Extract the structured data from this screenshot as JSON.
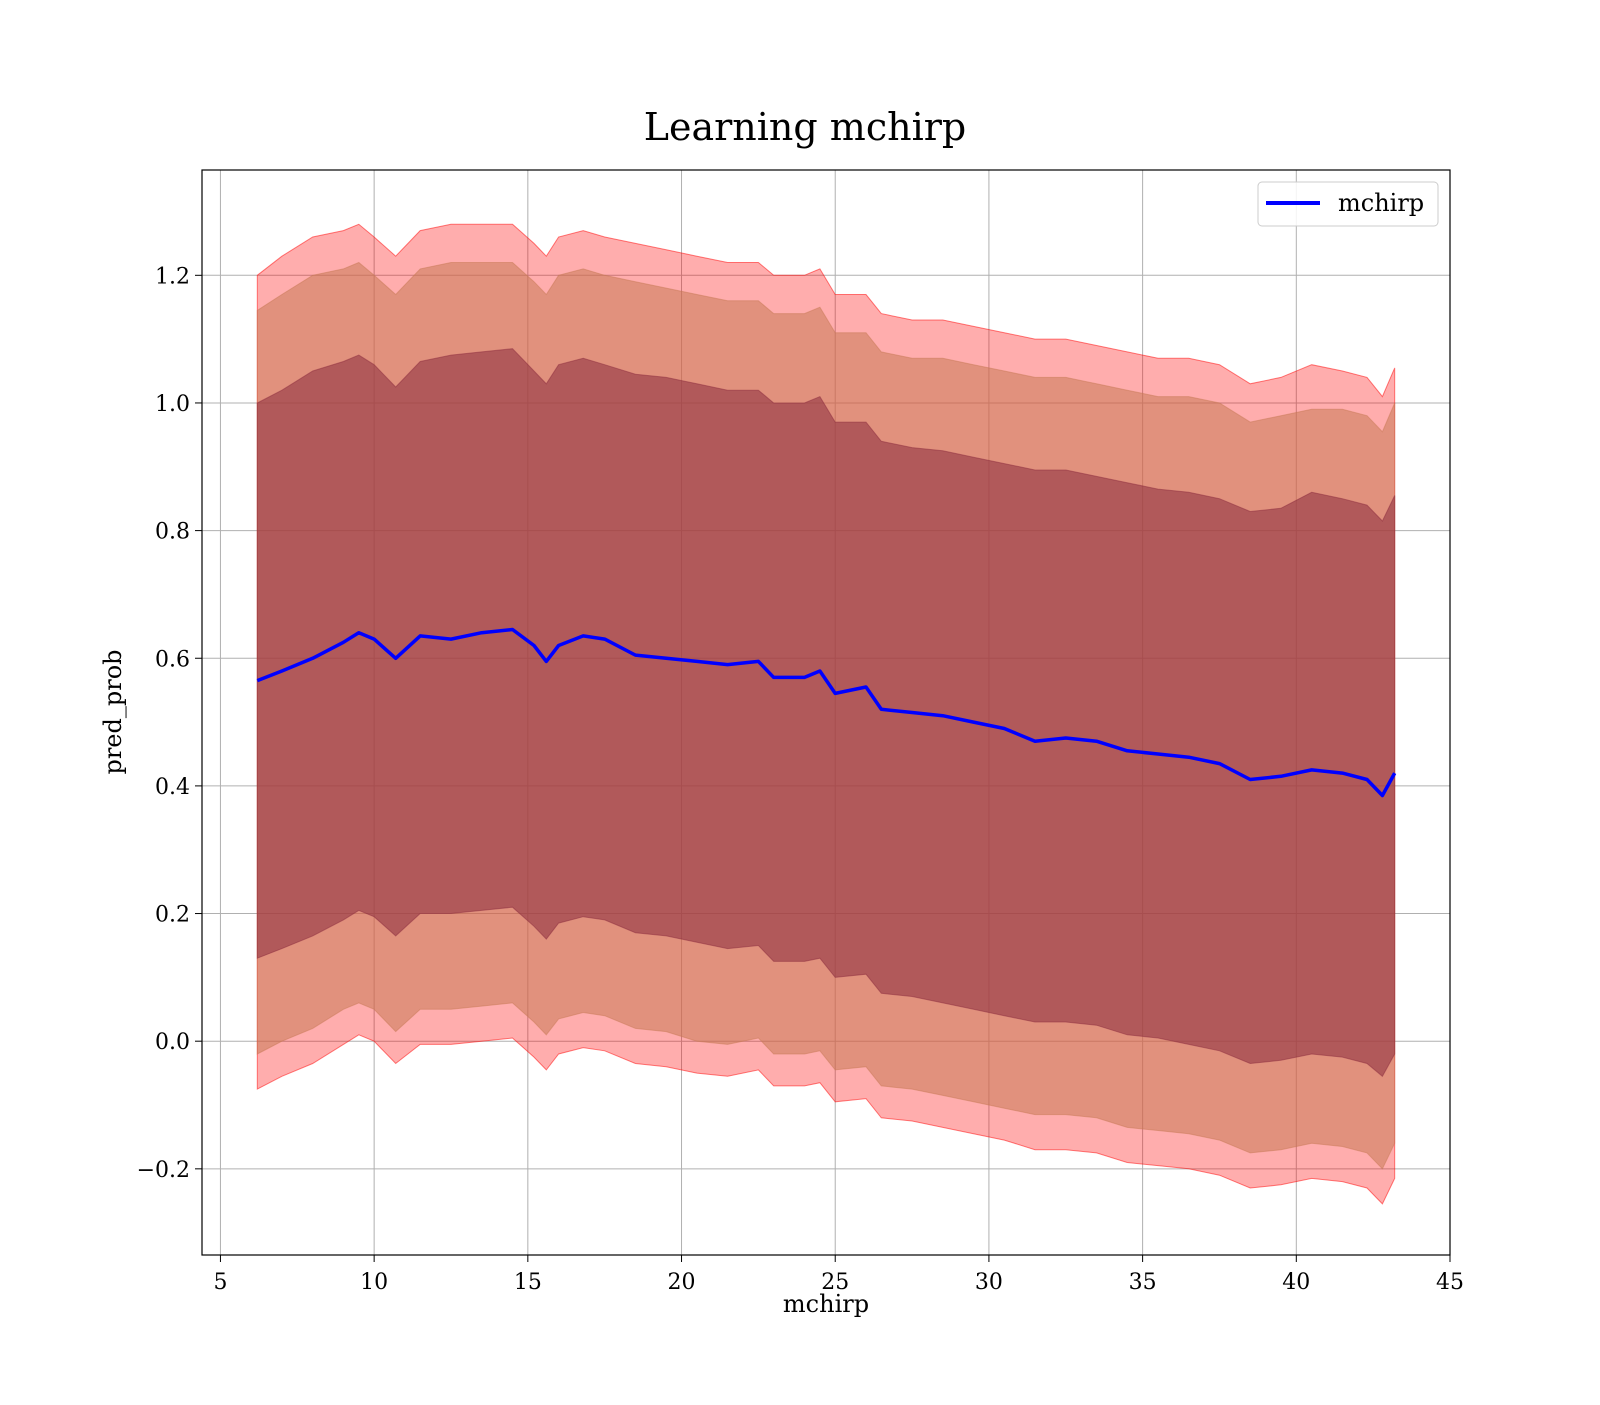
{
  "chart_data": {
    "type": "line",
    "title": "Learning mchirp",
    "xlabel": "mchirp",
    "ylabel": "pred_prob",
    "xlim": [
      4.4,
      45
    ],
    "ylim": [
      -0.335,
      1.365
    ],
    "xticks": [
      5,
      10,
      15,
      20,
      25,
      30,
      35,
      40,
      45
    ],
    "xtick_labels": [
      "5",
      "10",
      "15",
      "20",
      "25",
      "30",
      "35",
      "40",
      "45"
    ],
    "yticks": [
      -0.2,
      0.0,
      0.2,
      0.4,
      0.6,
      0.8,
      1.0,
      1.2
    ],
    "ytick_labels": [
      "−0.2",
      "0.0",
      "0.2",
      "0.4",
      "0.6",
      "0.8",
      "1.0",
      "1.2"
    ],
    "grid": true,
    "legend": {
      "placement": "top-right",
      "entries": [
        "mchirp"
      ]
    },
    "colors": {
      "line": "#0000ff",
      "band_outer": "#ff0000",
      "band_middle": "#c87a55",
      "band_inner": "#8b2c3e"
    },
    "x": [
      6.2,
      7.0,
      8.0,
      9.0,
      9.5,
      10.0,
      10.7,
      11.5,
      12.5,
      13.5,
      14.5,
      15.2,
      15.6,
      16.0,
      16.8,
      17.5,
      18.5,
      19.5,
      20.5,
      21.5,
      22.5,
      23.0,
      24.0,
      24.5,
      25.0,
      26.0,
      26.5,
      27.5,
      28.5,
      29.5,
      30.5,
      31.5,
      32.5,
      33.5,
      34.5,
      35.5,
      36.5,
      37.5,
      38.5,
      39.5,
      40.5,
      41.5,
      42.3,
      42.8,
      43.2
    ],
    "series": [
      {
        "name": "mchirp",
        "values": [
          0.565,
          0.58,
          0.6,
          0.625,
          0.64,
          0.63,
          0.6,
          0.635,
          0.63,
          0.64,
          0.645,
          0.62,
          0.595,
          0.62,
          0.635,
          0.63,
          0.605,
          0.6,
          0.595,
          0.59,
          0.595,
          0.57,
          0.57,
          0.58,
          0.545,
          0.555,
          0.52,
          0.515,
          0.51,
          0.5,
          0.49,
          0.47,
          0.475,
          0.47,
          0.455,
          0.45,
          0.445,
          0.435,
          0.41,
          0.415,
          0.425,
          0.42,
          0.41,
          0.385,
          0.42
        ]
      }
    ],
    "bands": [
      {
        "level": "outer",
        "upper": [
          1.2,
          1.23,
          1.26,
          1.27,
          1.28,
          1.26,
          1.23,
          1.27,
          1.28,
          1.28,
          1.28,
          1.25,
          1.23,
          1.26,
          1.27,
          1.26,
          1.25,
          1.24,
          1.23,
          1.22,
          1.22,
          1.2,
          1.2,
          1.21,
          1.17,
          1.17,
          1.14,
          1.13,
          1.13,
          1.12,
          1.11,
          1.1,
          1.1,
          1.09,
          1.08,
          1.07,
          1.07,
          1.06,
          1.03,
          1.04,
          1.06,
          1.05,
          1.04,
          1.01,
          1.055
        ],
        "lower": [
          -0.075,
          -0.055,
          -0.035,
          -0.005,
          0.01,
          0.0,
          -0.035,
          -0.005,
          -0.005,
          0.0,
          0.005,
          -0.025,
          -0.045,
          -0.02,
          -0.01,
          -0.015,
          -0.035,
          -0.04,
          -0.05,
          -0.055,
          -0.045,
          -0.07,
          -0.07,
          -0.065,
          -0.095,
          -0.09,
          -0.12,
          -0.125,
          -0.135,
          -0.145,
          -0.155,
          -0.17,
          -0.17,
          -0.175,
          -0.19,
          -0.195,
          -0.2,
          -0.21,
          -0.23,
          -0.225,
          -0.215,
          -0.22,
          -0.23,
          -0.255,
          -0.215
        ]
      },
      {
        "level": "middle",
        "upper": [
          1.145,
          1.17,
          1.2,
          1.21,
          1.22,
          1.2,
          1.17,
          1.21,
          1.22,
          1.22,
          1.22,
          1.19,
          1.17,
          1.2,
          1.21,
          1.2,
          1.19,
          1.18,
          1.17,
          1.16,
          1.16,
          1.14,
          1.14,
          1.15,
          1.11,
          1.11,
          1.08,
          1.07,
          1.07,
          1.06,
          1.05,
          1.04,
          1.04,
          1.03,
          1.02,
          1.01,
          1.01,
          1.0,
          0.97,
          0.98,
          0.99,
          0.99,
          0.98,
          0.955,
          1.0
        ],
        "lower": [
          -0.02,
          0.0,
          0.02,
          0.05,
          0.06,
          0.05,
          0.015,
          0.05,
          0.05,
          0.055,
          0.06,
          0.03,
          0.01,
          0.035,
          0.045,
          0.04,
          0.02,
          0.015,
          0.0,
          -0.005,
          0.005,
          -0.02,
          -0.02,
          -0.015,
          -0.045,
          -0.04,
          -0.07,
          -0.075,
          -0.085,
          -0.095,
          -0.105,
          -0.115,
          -0.115,
          -0.12,
          -0.135,
          -0.14,
          -0.145,
          -0.155,
          -0.175,
          -0.17,
          -0.16,
          -0.165,
          -0.175,
          -0.2,
          -0.16
        ]
      },
      {
        "level": "inner",
        "upper": [
          1.0,
          1.02,
          1.05,
          1.065,
          1.075,
          1.06,
          1.025,
          1.065,
          1.075,
          1.08,
          1.085,
          1.05,
          1.03,
          1.06,
          1.07,
          1.06,
          1.045,
          1.04,
          1.03,
          1.02,
          1.02,
          1.0,
          1.0,
          1.01,
          0.97,
          0.97,
          0.94,
          0.93,
          0.925,
          0.915,
          0.905,
          0.895,
          0.895,
          0.885,
          0.875,
          0.865,
          0.86,
          0.85,
          0.83,
          0.835,
          0.86,
          0.85,
          0.84,
          0.815,
          0.855
        ],
        "lower": [
          0.13,
          0.145,
          0.165,
          0.19,
          0.205,
          0.195,
          0.165,
          0.2,
          0.2,
          0.205,
          0.21,
          0.18,
          0.16,
          0.185,
          0.195,
          0.19,
          0.17,
          0.165,
          0.155,
          0.145,
          0.15,
          0.125,
          0.125,
          0.13,
          0.1,
          0.105,
          0.075,
          0.07,
          0.06,
          0.05,
          0.04,
          0.03,
          0.03,
          0.025,
          0.01,
          0.005,
          -0.005,
          -0.015,
          -0.035,
          -0.03,
          -0.02,
          -0.025,
          -0.035,
          -0.055,
          -0.02
        ]
      }
    ]
  }
}
